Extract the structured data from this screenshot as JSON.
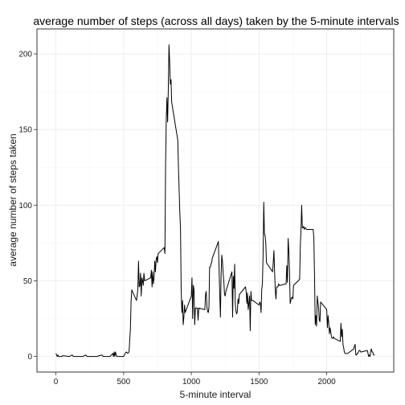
{
  "chart_data": {
    "type": "line",
    "title": "average number of steps (across all days) taken by the 5-minute intervals",
    "xlabel": "5-minute interval",
    "ylabel": "average number of steps taken",
    "xlim": [
      -140,
      2495
    ],
    "ylim": [
      -10.3,
      216.5
    ],
    "x_ticks": [
      0,
      500,
      1000,
      1500,
      2000
    ],
    "y_ticks": [
      0,
      50,
      100,
      150,
      200
    ],
    "grid": true,
    "series": [
      {
        "values": [
          [
            0,
            2
          ],
          [
            10,
            0
          ],
          [
            15,
            1
          ],
          [
            20,
            0
          ],
          [
            40,
            0
          ],
          [
            50,
            0.5
          ],
          [
            100,
            0
          ],
          [
            120,
            1
          ],
          [
            130,
            0
          ],
          [
            200,
            0
          ],
          [
            220,
            1
          ],
          [
            230,
            0
          ],
          [
            300,
            0
          ],
          [
            340,
            1
          ],
          [
            350,
            0
          ],
          [
            400,
            0
          ],
          [
            420,
            2
          ],
          [
            425,
            0
          ],
          [
            430,
            3
          ],
          [
            435,
            0
          ],
          [
            440,
            3
          ],
          [
            445,
            1
          ],
          [
            450,
            0
          ],
          [
            500,
            0
          ],
          [
            510,
            2
          ],
          [
            520,
            3
          ],
          [
            530,
            2
          ],
          [
            540,
            3
          ],
          [
            550,
            18
          ],
          [
            555,
            36
          ],
          [
            560,
            44
          ],
          [
            570,
            42
          ],
          [
            580,
            40
          ],
          [
            590,
            38
          ],
          [
            595,
            37
          ],
          [
            605,
            44
          ],
          [
            610,
            63
          ],
          [
            615,
            46
          ],
          [
            620,
            47
          ],
          [
            625,
            55
          ],
          [
            630,
            40
          ],
          [
            635,
            52
          ],
          [
            640,
            50
          ],
          [
            645,
            47
          ],
          [
            650,
            55
          ],
          [
            655,
            50
          ],
          [
            700,
            52
          ],
          [
            705,
            57
          ],
          [
            710,
            46
          ],
          [
            715,
            56
          ],
          [
            720,
            48
          ],
          [
            725,
            52
          ],
          [
            730,
            63
          ],
          [
            735,
            56
          ],
          [
            740,
            64
          ],
          [
            745,
            66
          ],
          [
            750,
            62
          ],
          [
            755,
            68
          ],
          [
            800,
            72
          ],
          [
            805,
            68
          ],
          [
            810,
            128
          ],
          [
            815,
            157
          ],
          [
            820,
            171
          ],
          [
            825,
            155
          ],
          [
            830,
            177
          ],
          [
            835,
            206
          ],
          [
            840,
            195
          ],
          [
            845,
            180
          ],
          [
            850,
            183
          ],
          [
            855,
            168
          ],
          [
            900,
            143
          ],
          [
            905,
            125
          ],
          [
            910,
            110
          ],
          [
            915,
            95
          ],
          [
            920,
            85
          ],
          [
            925,
            45
          ],
          [
            930,
            29
          ],
          [
            935,
            37
          ],
          [
            940,
            21
          ],
          [
            945,
            26
          ],
          [
            950,
            34
          ],
          [
            955,
            29
          ],
          [
            1000,
            40
          ],
          [
            1005,
            52
          ],
          [
            1010,
            25
          ],
          [
            1015,
            47
          ],
          [
            1020,
            44
          ],
          [
            1025,
            21
          ],
          [
            1030,
            32
          ],
          [
            1035,
            32
          ],
          [
            1040,
            32
          ],
          [
            1045,
            32
          ],
          [
            1050,
            24
          ],
          [
            1055,
            32
          ],
          [
            1100,
            31
          ],
          [
            1105,
            41
          ],
          [
            1110,
            43
          ],
          [
            1115,
            33
          ],
          [
            1120,
            30
          ],
          [
            1125,
            29
          ],
          [
            1130,
            32
          ],
          [
            1135,
            59
          ],
          [
            1140,
            59
          ],
          [
            1145,
            61
          ],
          [
            1150,
            62
          ],
          [
            1155,
            65
          ],
          [
            1200,
            76
          ],
          [
            1205,
            58
          ],
          [
            1210,
            41
          ],
          [
            1215,
            26
          ],
          [
            1220,
            54
          ],
          [
            1225,
            67
          ],
          [
            1230,
            63
          ],
          [
            1235,
            55
          ],
          [
            1240,
            50
          ],
          [
            1245,
            41
          ],
          [
            1250,
            40
          ],
          [
            1255,
            43
          ],
          [
            1300,
            56
          ],
          [
            1305,
            26
          ],
          [
            1310,
            53
          ],
          [
            1315,
            45
          ],
          [
            1320,
            61
          ],
          [
            1325,
            34
          ],
          [
            1330,
            30
          ],
          [
            1335,
            28
          ],
          [
            1340,
            30
          ],
          [
            1345,
            38
          ],
          [
            1350,
            35
          ],
          [
            1355,
            41
          ],
          [
            1400,
            46
          ],
          [
            1405,
            43
          ],
          [
            1410,
            35
          ],
          [
            1415,
            42
          ],
          [
            1420,
            31
          ],
          [
            1425,
            35
          ],
          [
            1430,
            40
          ],
          [
            1435,
            17
          ],
          [
            1440,
            43
          ],
          [
            1445,
            37
          ],
          [
            1450,
            37
          ],
          [
            1455,
            37
          ],
          [
            1500,
            34
          ],
          [
            1505,
            36
          ],
          [
            1510,
            35
          ],
          [
            1515,
            29
          ],
          [
            1520,
            44
          ],
          [
            1525,
            48
          ],
          [
            1530,
            67
          ],
          [
            1535,
            102
          ],
          [
            1540,
            81
          ],
          [
            1545,
            80
          ],
          [
            1550,
            75
          ],
          [
            1555,
            62
          ],
          [
            1600,
            56
          ],
          [
            1605,
            62
          ],
          [
            1610,
            70
          ],
          [
            1615,
            56
          ],
          [
            1620,
            44
          ],
          [
            1625,
            38
          ],
          [
            1630,
            46
          ],
          [
            1635,
            46
          ],
          [
            1640,
            46
          ],
          [
            1645,
            48
          ],
          [
            1650,
            47
          ],
          [
            1655,
            47
          ],
          [
            1700,
            48
          ],
          [
            1705,
            60
          ],
          [
            1710,
            49
          ],
          [
            1715,
            78
          ],
          [
            1720,
            70
          ],
          [
            1725,
            57
          ],
          [
            1730,
            35
          ],
          [
            1735,
            37
          ],
          [
            1740,
            39
          ],
          [
            1745,
            39
          ],
          [
            1750,
            38
          ],
          [
            1755,
            47
          ],
          [
            1800,
            51
          ],
          [
            1805,
            73
          ],
          [
            1810,
            84
          ],
          [
            1815,
            100
          ],
          [
            1820,
            85
          ],
          [
            1825,
            85
          ],
          [
            1830,
            86
          ],
          [
            1835,
            84
          ],
          [
            1840,
            85
          ],
          [
            1845,
            85
          ],
          [
            1850,
            84
          ],
          [
            1855,
            84
          ],
          [
            1900,
            84
          ],
          [
            1905,
            78
          ],
          [
            1910,
            53
          ],
          [
            1915,
            21
          ],
          [
            1920,
            27
          ],
          [
            1925,
            20
          ],
          [
            1930,
            40
          ],
          [
            1935,
            36
          ],
          [
            1940,
            32
          ],
          [
            1945,
            24
          ],
          [
            1950,
            23
          ],
          [
            1955,
            36
          ],
          [
            2000,
            31
          ],
          [
            2005,
            19
          ],
          [
            2010,
            27
          ],
          [
            2015,
            22
          ],
          [
            2020,
            15
          ],
          [
            2025,
            19
          ],
          [
            2030,
            16
          ],
          [
            2035,
            13
          ],
          [
            2040,
            12
          ],
          [
            2045,
            12
          ],
          [
            2050,
            13
          ],
          [
            2055,
            12
          ],
          [
            2100,
            10
          ],
          [
            2105,
            22
          ],
          [
            2110,
            13
          ],
          [
            2115,
            18
          ],
          [
            2120,
            8
          ],
          [
            2125,
            6
          ],
          [
            2130,
            3
          ],
          [
            2135,
            2
          ],
          [
            2140,
            2
          ],
          [
            2145,
            2
          ],
          [
            2150,
            2
          ],
          [
            2155,
            2
          ],
          [
            2200,
            5
          ],
          [
            2205,
            7
          ],
          [
            2210,
            8
          ],
          [
            2215,
            1
          ],
          [
            2220,
            1
          ],
          [
            2225,
            2
          ],
          [
            2230,
            2
          ],
          [
            2235,
            3
          ],
          [
            2240,
            4
          ],
          [
            2245,
            4
          ],
          [
            2250,
            3
          ],
          [
            2255,
            3
          ],
          [
            2300,
            4
          ],
          [
            2305,
            2
          ],
          [
            2310,
            0
          ],
          [
            2315,
            1
          ],
          [
            2320,
            0
          ],
          [
            2325,
            4
          ],
          [
            2330,
            5
          ],
          [
            2335,
            3
          ],
          [
            2340,
            3
          ],
          [
            2345,
            1
          ],
          [
            2350,
            1
          ],
          [
            2355,
            1
          ]
        ]
      }
    ]
  }
}
